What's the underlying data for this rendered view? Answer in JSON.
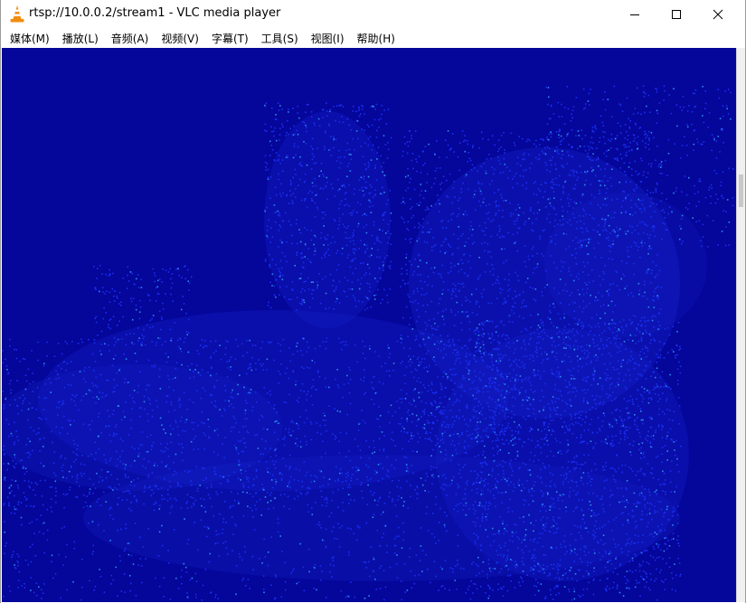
{
  "window": {
    "title": "rtsp://10.0.0.2/stream1 - VLC media player",
    "icon": "vlc-cone-icon",
    "controls": {
      "minimize_icon": "minimize-icon",
      "maximize_icon": "maximize-icon",
      "close_icon": "close-icon"
    }
  },
  "menu": {
    "items": [
      {
        "label": "媒体(M)"
      },
      {
        "label": "播放(L)"
      },
      {
        "label": "音频(A)"
      },
      {
        "label": "视频(V)"
      },
      {
        "label": "字幕(T)"
      },
      {
        "label": "工具(S)"
      },
      {
        "label": "视图(I)"
      },
      {
        "label": "帮助(H)"
      }
    ]
  },
  "video": {
    "background_color": "#05069a",
    "point_color": "#1a2ef0",
    "highlight_color": "#2a8cf0"
  }
}
